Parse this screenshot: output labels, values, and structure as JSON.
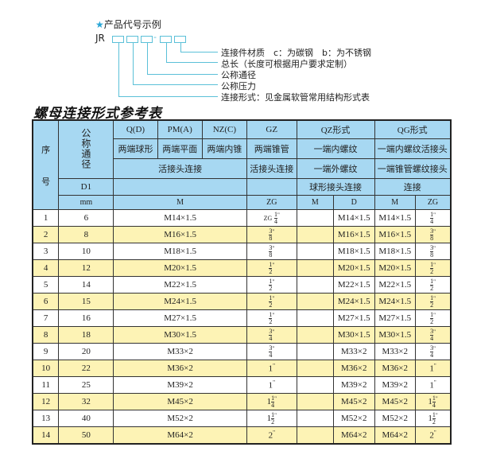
{
  "legend": {
    "star_label": "产品代号示例",
    "code_prefix": "JR",
    "dash": "-",
    "items": [
      "连接件材质　c：为碳钢　b：为不锈钢",
      "总长（长度可根据用户要求定制）",
      "公称通径",
      "公称压力",
      "连接形式：见金属软管常用结构形式表"
    ]
  },
  "title": "螺母连接形式参考表",
  "header": {
    "seq": "序",
    "seq2": "号",
    "dn": "公称通径",
    "d1": "D1",
    "mm": "mm",
    "q": "Q(D)",
    "pm": "PM(A)",
    "nz": "NZ(C)",
    "gz": "GZ",
    "qz": "QZ形式",
    "qg": "QG形式",
    "q2": "两端球形",
    "pm2": "两端平面",
    "nz2": "两端内锥",
    "gz2": "两端锥管",
    "qz2": "一端内螺纹",
    "qg2": "一端内螺纹活接头",
    "union": "活接头连接",
    "gz3": "活接头连接",
    "qz3": "一端外螺纹",
    "qg3": "一端锥管螺纹接头",
    "qz4": "球形接头连接",
    "qg4": "连接",
    "m": "M",
    "zg": "ZG",
    "qzm": "M",
    "qzd": "D",
    "qgm": "M",
    "qgzg": "ZG"
  },
  "rows": [
    {
      "no": "1",
      "dn": "6",
      "m": "M14×1.5",
      "zg_pre": "ZG",
      "zg_int": "",
      "zg_num": "1",
      "zg_den": "4",
      "qzd": "M14×1.5",
      "qgm": "M14×1.5",
      "qg_int": "",
      "qg_num": "1",
      "qg_den": "4"
    },
    {
      "no": "2",
      "dn": "8",
      "m": "M16×1.5",
      "zg_pre": "",
      "zg_int": "",
      "zg_num": "3",
      "zg_den": "8",
      "qzd": "M16×1.5",
      "qgm": "M16×1.5",
      "qg_int": "",
      "qg_num": "3",
      "qg_den": "8"
    },
    {
      "no": "3",
      "dn": "10",
      "m": "M18×1.5",
      "zg_pre": "",
      "zg_int": "",
      "zg_num": "3",
      "zg_den": "8",
      "qzd": "M18×1.5",
      "qgm": "M18×1.5",
      "qg_int": "",
      "qg_num": "3",
      "qg_den": "8"
    },
    {
      "no": "4",
      "dn": "12",
      "m": "M20×1.5",
      "zg_pre": "",
      "zg_int": "",
      "zg_num": "1",
      "zg_den": "2",
      "qzd": "M20×1.5",
      "qgm": "M20×1.5",
      "qg_int": "",
      "qg_num": "1",
      "qg_den": "2"
    },
    {
      "no": "5",
      "dn": "14",
      "m": "M22×1.5",
      "zg_pre": "",
      "zg_int": "",
      "zg_num": "1",
      "zg_den": "2",
      "qzd": "M22×1.5",
      "qgm": "M22×1.5",
      "qg_int": "",
      "qg_num": "1",
      "qg_den": "2"
    },
    {
      "no": "6",
      "dn": "15",
      "m": "M24×1.5",
      "zg_pre": "",
      "zg_int": "",
      "zg_num": "1",
      "zg_den": "2",
      "qzd": "M24×1.5",
      "qgm": "M24×1.5",
      "qg_int": "",
      "qg_num": "1",
      "qg_den": "2"
    },
    {
      "no": "7",
      "dn": "16",
      "m": "M27×1.5",
      "zg_pre": "",
      "zg_int": "",
      "zg_num": "1",
      "zg_den": "2",
      "qzd": "M27×1.5",
      "qgm": "M27×1.5",
      "qg_int": "",
      "qg_num": "1",
      "qg_den": "2"
    },
    {
      "no": "8",
      "dn": "18",
      "m": "M30×1.5",
      "zg_pre": "",
      "zg_int": "",
      "zg_num": "3",
      "zg_den": "4",
      "qzd": "M30×1.5",
      "qgm": "M30×1.5",
      "qg_int": "",
      "qg_num": "3",
      "qg_den": "4"
    },
    {
      "no": "9",
      "dn": "20",
      "m": "M33×2",
      "zg_pre": "",
      "zg_int": "",
      "zg_num": "3",
      "zg_den": "4",
      "qzd": "M33×2",
      "qgm": "M33×2",
      "qg_int": "",
      "qg_num": "3",
      "qg_den": "4"
    },
    {
      "no": "10",
      "dn": "22",
      "m": "M36×2",
      "zg_pre": "",
      "zg_int": "1",
      "zg_num": "",
      "zg_den": "",
      "qzd": "M36×2",
      "qgm": "M36×2",
      "qg_int": "1",
      "qg_num": "",
      "qg_den": ""
    },
    {
      "no": "11",
      "dn": "25",
      "m": "M39×2",
      "zg_pre": "",
      "zg_int": "1",
      "zg_num": "",
      "zg_den": "",
      "qzd": "M39×2",
      "qgm": "M39×2",
      "qg_int": "1",
      "qg_num": "",
      "qg_den": ""
    },
    {
      "no": "12",
      "dn": "32",
      "m": "M45×2",
      "zg_pre": "",
      "zg_int": "1",
      "zg_num": "1",
      "zg_den": "4",
      "qzd": "M45×2",
      "qgm": "M45×2",
      "qg_int": "1",
      "qg_num": "1",
      "qg_den": "4"
    },
    {
      "no": "13",
      "dn": "40",
      "m": "M52×2",
      "zg_pre": "",
      "zg_int": "1",
      "zg_num": "1",
      "zg_den": "2",
      "qzd": "M52×2",
      "qgm": "M52×2",
      "qg_int": "1",
      "qg_num": "1",
      "qg_den": "2"
    },
    {
      "no": "14",
      "dn": "50",
      "m": "M64×2",
      "zg_pre": "",
      "zg_int": "2",
      "zg_num": "",
      "zg_den": "",
      "qzd": "M64×2",
      "qgm": "M64×2",
      "qg_int": "2",
      "qg_num": "",
      "qg_den": ""
    }
  ],
  "inch_mark": "\""
}
